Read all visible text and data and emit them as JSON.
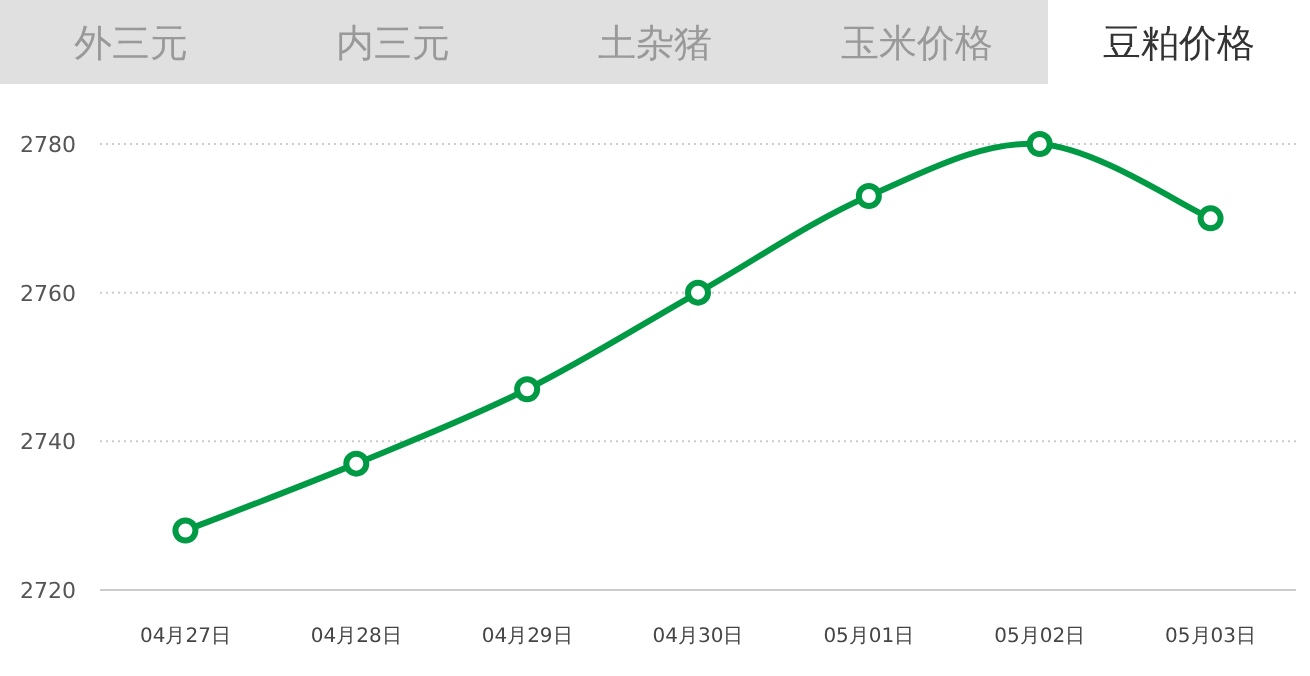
{
  "chart_data": {
    "type": "line",
    "title": "豆粕价格",
    "annotations": [
      "外三元",
      "内三元",
      "土杂猪",
      "玉米价格"
    ],
    "categories": [
      "04月27日",
      "04月28日",
      "04月29日",
      "04月30日",
      "05月01日",
      "05月02日",
      "05月03日"
    ],
    "series": [
      {
        "color": "#009a44",
        "values": [
          2728,
          2737,
          2747,
          2760,
          2773,
          2780,
          2770
        ]
      }
    ],
    "ylim": [
      2720,
      2780
    ],
    "yticks": [
      2720,
      2740,
      2760,
      2780
    ],
    "grid": "y",
    "marker": "circle",
    "line_style": "solid"
  }
}
